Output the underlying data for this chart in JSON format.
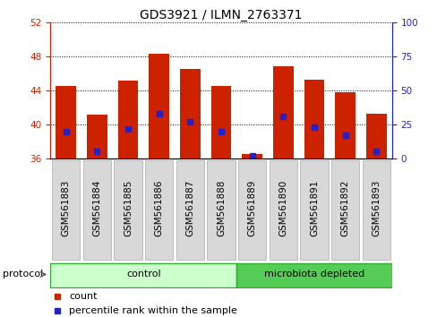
{
  "title": "GDS3921 / ILMN_2763371",
  "samples": [
    "GSM561883",
    "GSM561884",
    "GSM561885",
    "GSM561886",
    "GSM561887",
    "GSM561888",
    "GSM561889",
    "GSM561890",
    "GSM561891",
    "GSM561892",
    "GSM561893"
  ],
  "counts": [
    44.5,
    41.2,
    45.1,
    48.3,
    46.5,
    44.5,
    36.5,
    46.8,
    45.2,
    43.8,
    41.3
  ],
  "percentile_ranks": [
    20,
    5,
    22,
    33,
    27,
    20,
    2,
    31,
    23,
    17,
    5
  ],
  "baseline": 36.0,
  "ylim_left": [
    36,
    52
  ],
  "ylim_right": [
    0,
    100
  ],
  "yticks_left": [
    36,
    40,
    44,
    48,
    52
  ],
  "yticks_right": [
    0,
    25,
    50,
    75,
    100
  ],
  "bar_color": "#cc2200",
  "marker_color": "#2222cc",
  "bar_width": 0.65,
  "grid_color": "#000000",
  "ctrl_count": 6,
  "micro_count": 5,
  "control_color": "#ccffcc",
  "microbiota_color": "#55cc55",
  "protocol_label": "protocol",
  "control_label": "control",
  "microbiota_label": "microbiota depleted",
  "legend_count_label": "count",
  "legend_percentile_label": "percentile rank within the sample",
  "title_fontsize": 10,
  "tick_fontsize": 7.5,
  "label_fontsize": 8
}
